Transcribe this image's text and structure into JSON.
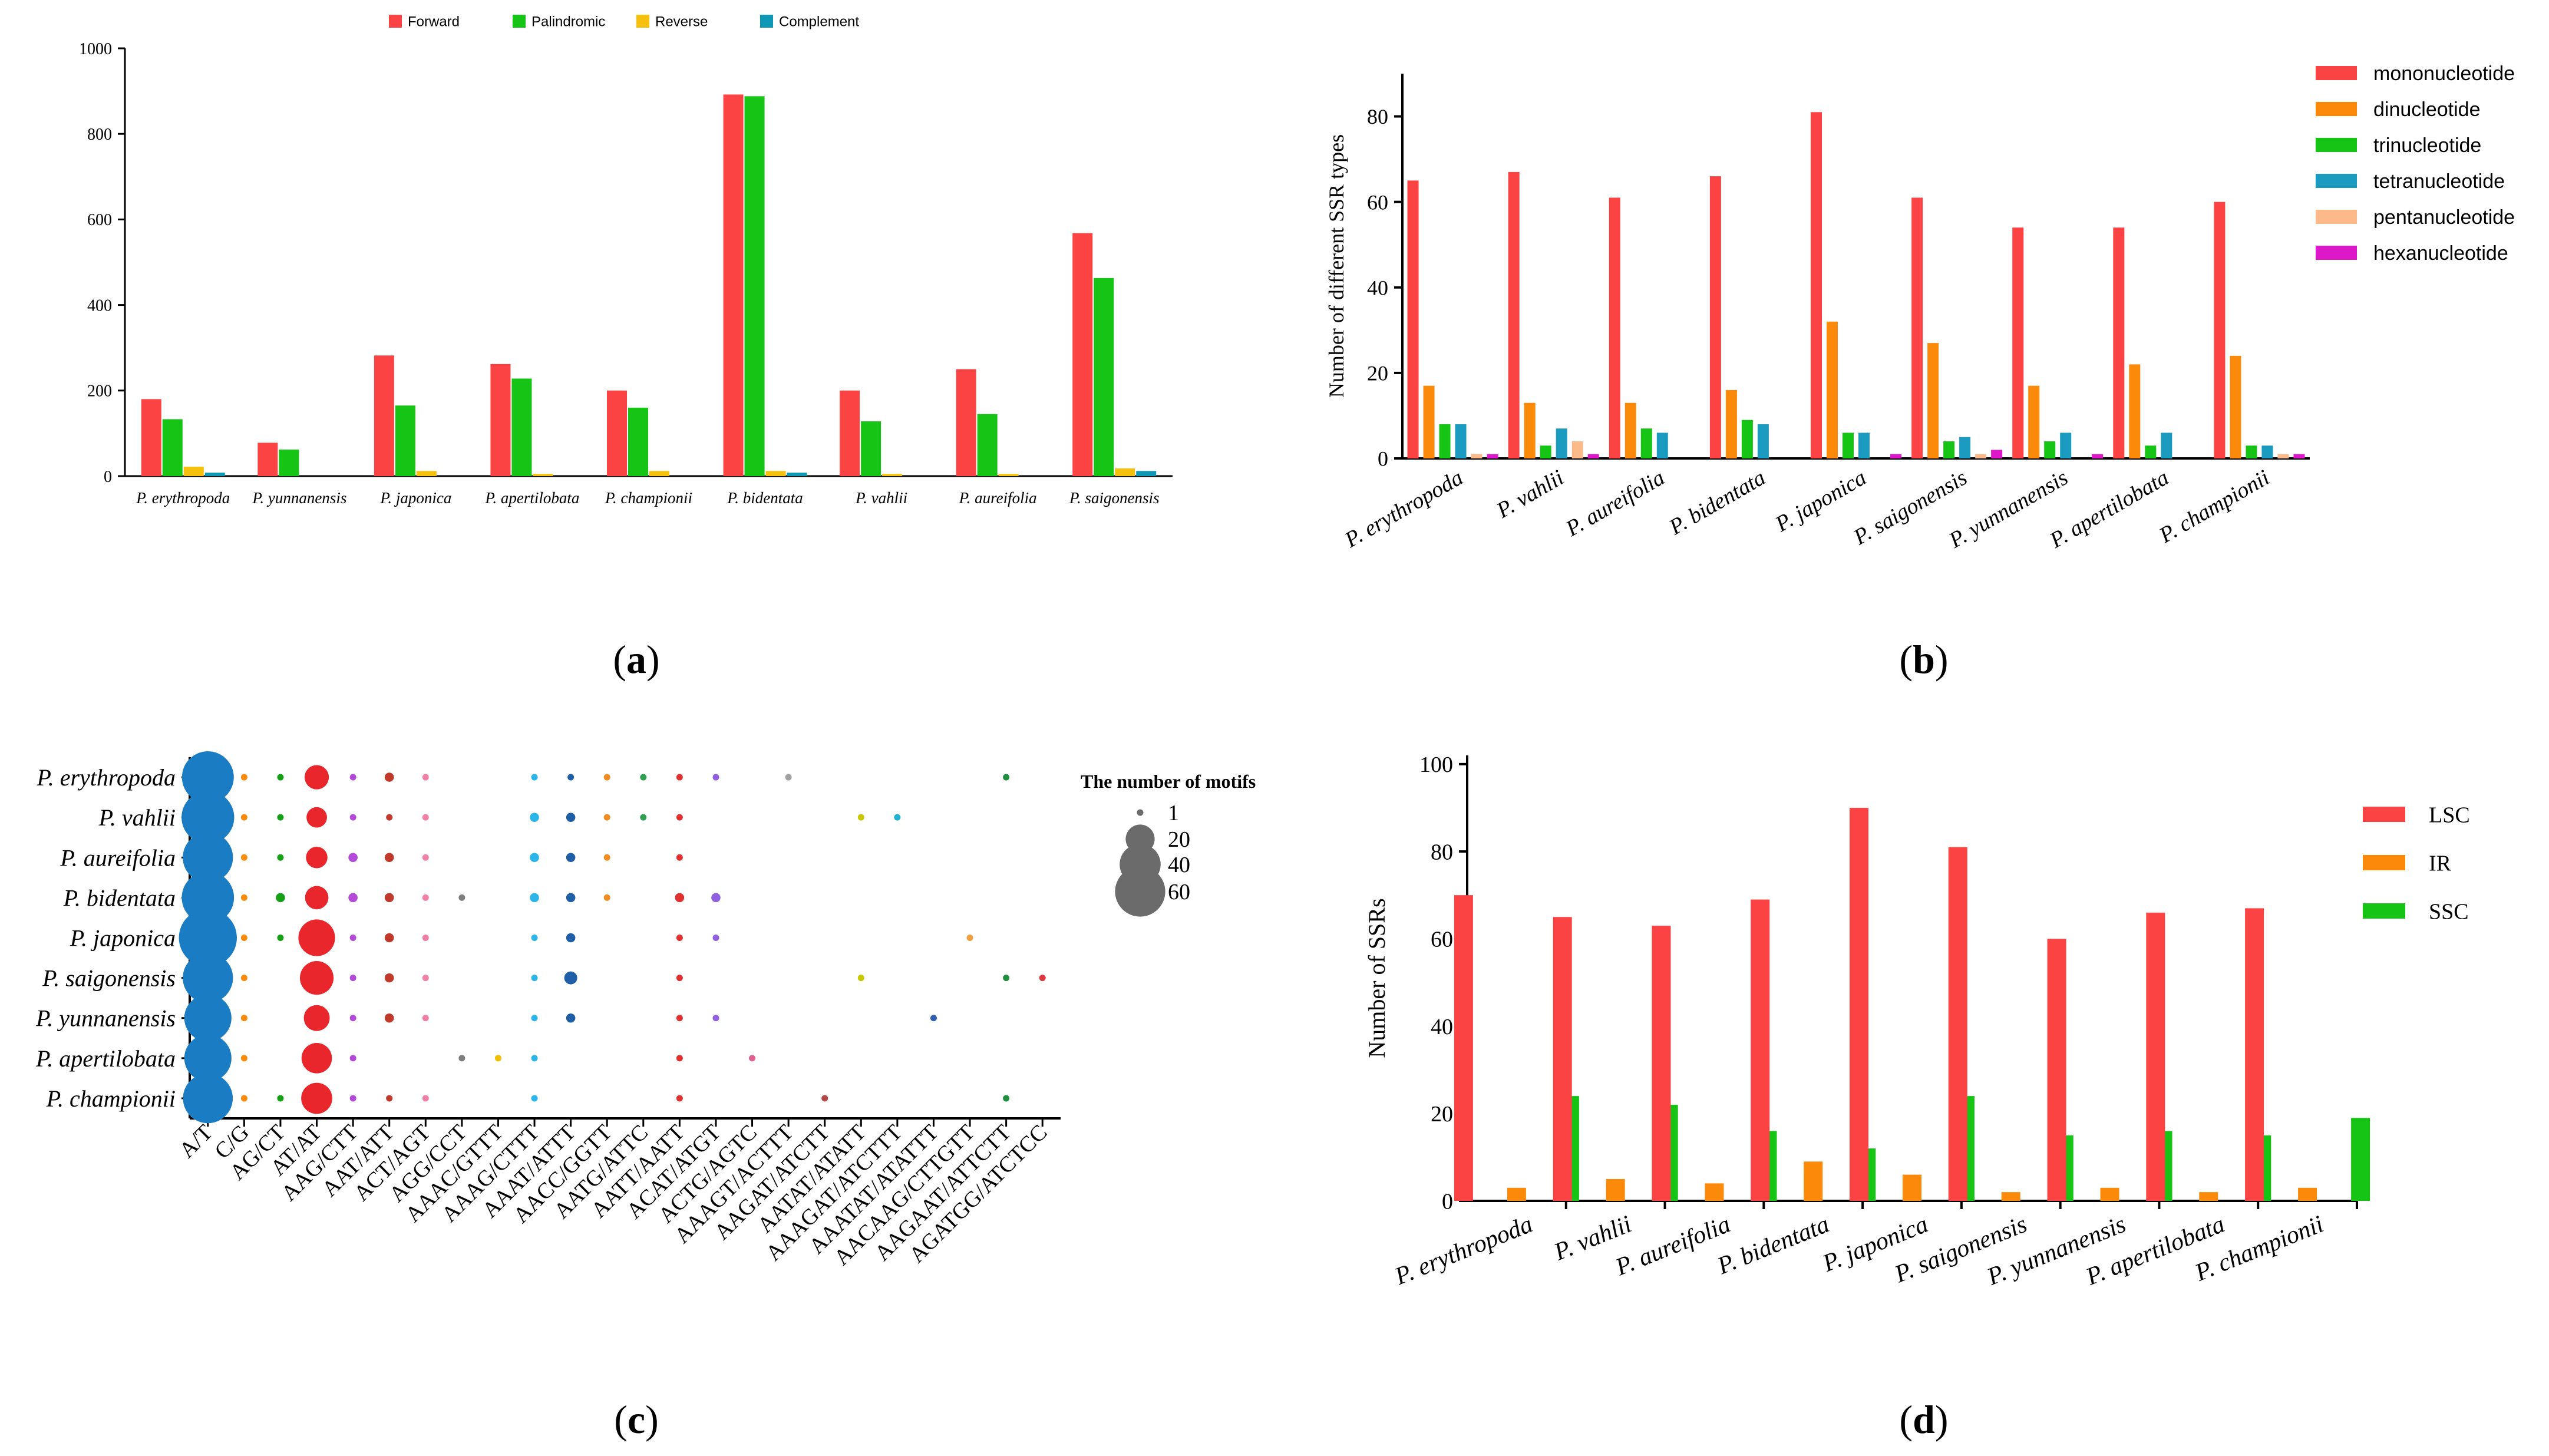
{
  "panel_labels": {
    "a": "a",
    "b": "b",
    "c": "c",
    "d": "d"
  },
  "colors": {
    "red": "#fc4343",
    "green": "#16c416",
    "yellow": "#f5c10d",
    "teal": "#0e98b5",
    "orange": "#fb8a0b",
    "tealb": "#1a9bbf",
    "peach": "#fcb98a",
    "magenta": "#dd18c9",
    "bubble_blue": "#1a7cc2",
    "bubble_gray": "#6b6b6b"
  },
  "chart_data": [
    {
      "id": "a",
      "type": "bar",
      "title": "",
      "xlabel": "",
      "ylabel": "",
      "ylim": [
        0,
        1000
      ],
      "yticks": [
        0,
        200,
        400,
        600,
        800,
        1000
      ],
      "legend_position": "top",
      "categories": [
        "P. erythropoda",
        "P. yunnanensis",
        "P. japonica",
        "P. apertilobata",
        "P. championii",
        "P. bidentata",
        "P. vahlii",
        "P. aureifolia",
        "P. saigonensis"
      ],
      "series": [
        {
          "name": "Forward",
          "color": "#fc4343",
          "values": [
            180,
            78,
            282,
            262,
            200,
            892,
            200,
            250,
            568
          ]
        },
        {
          "name": "Palindromic",
          "color": "#16c416",
          "values": [
            133,
            62,
            165,
            228,
            160,
            888,
            128,
            145,
            463
          ]
        },
        {
          "name": "Reverse",
          "color": "#f5c10d",
          "values": [
            22,
            0,
            12,
            5,
            12,
            12,
            5,
            5,
            18
          ]
        },
        {
          "name": "Complement",
          "color": "#0e98b5",
          "values": [
            8,
            0,
            0,
            0,
            0,
            8,
            0,
            0,
            12
          ]
        }
      ]
    },
    {
      "id": "b",
      "type": "bar",
      "title": "",
      "xlabel": "",
      "ylabel": "Number of different SSR types",
      "ylim": [
        0,
        90
      ],
      "yticks": [
        0,
        20,
        40,
        60,
        80
      ],
      "legend_position": "right",
      "categories": [
        "P. erythropoda",
        "P. vahlii",
        "P. aureifolia",
        "P. bidentata",
        "P. japonica",
        "P. saigonensis",
        "P. yunnanensis",
        "P. apertilobata",
        "P. championii"
      ],
      "series": [
        {
          "name": "mononucleotide",
          "color": "#fc4343",
          "values": [
            65,
            67,
            61,
            66,
            81,
            61,
            54,
            54,
            60
          ]
        },
        {
          "name": "dinucleotide",
          "color": "#fb8a0b",
          "values": [
            17,
            13,
            13,
            16,
            32,
            27,
            17,
            22,
            24
          ]
        },
        {
          "name": "trinucleotide",
          "color": "#16c416",
          "values": [
            8,
            3,
            7,
            9,
            6,
            4,
            4,
            3,
            3
          ]
        },
        {
          "name": "tetranucleotide",
          "color": "#1a9bbf",
          "values": [
            8,
            7,
            6,
            8,
            6,
            5,
            6,
            6,
            3
          ]
        },
        {
          "name": "pentanucleotide",
          "color": "#fcb98a",
          "values": [
            1,
            4,
            0,
            0,
            0,
            1,
            0,
            0,
            1
          ]
        },
        {
          "name": "hexanucleotide",
          "color": "#dd18c9",
          "values": [
            1,
            1,
            0,
            0,
            1,
            2,
            1,
            0,
            1
          ]
        }
      ]
    },
    {
      "id": "c",
      "type": "scatter",
      "title": "",
      "xlabel": "",
      "ylabel": "",
      "legend_title": "The number of motifs",
      "size_legend": [
        1,
        20,
        40,
        60
      ],
      "species": [
        "P. erythropoda",
        "P. vahlii",
        "P. aureifolia",
        "P. bidentata",
        "P. japonica",
        "P. saigonensis",
        "P. yunnanensis",
        "P. apertilobata",
        "P. championii"
      ],
      "motifs": [
        "A/T",
        "C/G",
        "AG/CT",
        "AT/AT",
        "AAG/CTT",
        "AAT/ATT",
        "ACT/AGT",
        "AGG/CCT",
        "AAAC/GTTT",
        "AAAG/CTTT",
        "AAAT/ATTT",
        "AACC/GGTT",
        "AATG/ATTC",
        "AATT/AATT",
        "ACAT/ATGT",
        "ACTG/AGTC",
        "AAAGT/ACTTT",
        "AAGAT/ATCTT",
        "AATAT/ATATT",
        "AAAGAT/ATCTTT",
        "AAATAT/ATATTT",
        "AACAAG/CTTGTT",
        "AAGAAT/ATTCTT",
        "AGATGG/ATCTCC"
      ],
      "motif_colors": [
        "#1a7cc2",
        "#fb8a0b",
        "#16a016",
        "#e8262b",
        "#b44ad8",
        "#c0392b",
        "#f080a8",
        "#7e7e7e",
        "#f0c000",
        "#2cb5e8",
        "#1e5fa8",
        "#f08c20",
        "#2ea050",
        "#e03030",
        "#9060e0",
        "#e06090",
        "#a0a0a0",
        "#b04848",
        "#c8c800",
        "#20b0d0",
        "#3060b0",
        "#f0a040",
        "#209040",
        "#e03840"
      ],
      "points": [
        {
          "species": "P. erythropoda",
          "motif": "A/T",
          "count": 64
        },
        {
          "species": "P. erythropoda",
          "motif": "C/G",
          "count": 1
        },
        {
          "species": "P. erythropoda",
          "motif": "AG/CT",
          "count": 1
        },
        {
          "species": "P. erythropoda",
          "motif": "AT/AT",
          "count": 14
        },
        {
          "species": "P. erythropoda",
          "motif": "AAG/CTT",
          "count": 1
        },
        {
          "species": "P. erythropoda",
          "motif": "AAT/ATT",
          "count": 2
        },
        {
          "species": "P. erythropoda",
          "motif": "ACT/AGT",
          "count": 1
        },
        {
          "species": "P. erythropoda",
          "motif": "AAAG/CTTT",
          "count": 1
        },
        {
          "species": "P. erythropoda",
          "motif": "AAAT/ATTT",
          "count": 1
        },
        {
          "species": "P. erythropoda",
          "motif": "AACC/GGTT",
          "count": 1
        },
        {
          "species": "P. erythropoda",
          "motif": "AATG/ATTC",
          "count": 1
        },
        {
          "species": "P. erythropoda",
          "motif": "AATT/AATT",
          "count": 1
        },
        {
          "species": "P. erythropoda",
          "motif": "ACAT/ATGT",
          "count": 1
        },
        {
          "species": "P. erythropoda",
          "motif": "AAAGT/ACTTT",
          "count": 1
        },
        {
          "species": "P. erythropoda",
          "motif": "AAGAAT/ATTCTT",
          "count": 1
        },
        {
          "species": "P. vahlii",
          "motif": "A/T",
          "count": 66
        },
        {
          "species": "P. vahlii",
          "motif": "C/G",
          "count": 1
        },
        {
          "species": "P. vahlii",
          "motif": "AG/CT",
          "count": 1
        },
        {
          "species": "P. vahlii",
          "motif": "AT/AT",
          "count": 10
        },
        {
          "species": "P. vahlii",
          "motif": "AAG/CTT",
          "count": 1
        },
        {
          "species": "P. vahlii",
          "motif": "AAT/ATT",
          "count": 1
        },
        {
          "species": "P. vahlii",
          "motif": "ACT/AGT",
          "count": 1
        },
        {
          "species": "P. vahlii",
          "motif": "AAAG/CTTT",
          "count": 2
        },
        {
          "species": "P. vahlii",
          "motif": "AAAT/ATTT",
          "count": 2
        },
        {
          "species": "P. vahlii",
          "motif": "AACC/GGTT",
          "count": 1
        },
        {
          "species": "P. vahlii",
          "motif": "AATG/ATTC",
          "count": 1
        },
        {
          "species": "P. vahlii",
          "motif": "AATT/AATT",
          "count": 1
        },
        {
          "species": "P. vahlii",
          "motif": "AATAT/ATATT",
          "count": 1
        },
        {
          "species": "P. vahlii",
          "motif": "AAAGAT/ATCTTT",
          "count": 1
        },
        {
          "species": "P. aureifolia",
          "motif": "A/T",
          "count": 60
        },
        {
          "species": "P. aureifolia",
          "motif": "C/G",
          "count": 1
        },
        {
          "species": "P. aureifolia",
          "motif": "AG/CT",
          "count": 1
        },
        {
          "species": "P. aureifolia",
          "motif": "AT/AT",
          "count": 11
        },
        {
          "species": "P. aureifolia",
          "motif": "AAG/CTT",
          "count": 2
        },
        {
          "species": "P. aureifolia",
          "motif": "AAT/ATT",
          "count": 2
        },
        {
          "species": "P. aureifolia",
          "motif": "ACT/AGT",
          "count": 1
        },
        {
          "species": "P. aureifolia",
          "motif": "AAAG/CTTT",
          "count": 2
        },
        {
          "species": "P. aureifolia",
          "motif": "AAAT/ATTT",
          "count": 2
        },
        {
          "species": "P. aureifolia",
          "motif": "AACC/GGTT",
          "count": 1
        },
        {
          "species": "P. aureifolia",
          "motif": "AATT/AATT",
          "count": 1
        },
        {
          "species": "P. bidentata",
          "motif": "A/T",
          "count": 65
        },
        {
          "species": "P. bidentata",
          "motif": "C/G",
          "count": 1
        },
        {
          "species": "P. bidentata",
          "motif": "AG/CT",
          "count": 2
        },
        {
          "species": "P. bidentata",
          "motif": "AT/AT",
          "count": 13
        },
        {
          "species": "P. bidentata",
          "motif": "AAG/CTT",
          "count": 2
        },
        {
          "species": "P. bidentata",
          "motif": "AAT/ATT",
          "count": 2
        },
        {
          "species": "P. bidentata",
          "motif": "ACT/AGT",
          "count": 1
        },
        {
          "species": "P. bidentata",
          "motif": "AGG/CCT",
          "count": 1
        },
        {
          "species": "P. bidentata",
          "motif": "AAAG/CTTT",
          "count": 2
        },
        {
          "species": "P. bidentata",
          "motif": "AAAT/ATTT",
          "count": 2
        },
        {
          "species": "P. bidentata",
          "motif": "AACC/GGTT",
          "count": 1
        },
        {
          "species": "P. bidentata",
          "motif": "AATT/AATT",
          "count": 2
        },
        {
          "species": "P. bidentata",
          "motif": "ACAT/ATGT",
          "count": 2
        },
        {
          "species": "P. japonica",
          "motif": "A/T",
          "count": 80
        },
        {
          "species": "P. japonica",
          "motif": "C/G",
          "count": 1
        },
        {
          "species": "P. japonica",
          "motif": "AG/CT",
          "count": 1
        },
        {
          "species": "P. japonica",
          "motif": "AT/AT",
          "count": 32
        },
        {
          "species": "P. japonica",
          "motif": "AAG/CTT",
          "count": 1
        },
        {
          "species": "P. japonica",
          "motif": "AAT/ATT",
          "count": 2
        },
        {
          "species": "P. japonica",
          "motif": "ACT/AGT",
          "count": 1
        },
        {
          "species": "P. japonica",
          "motif": "AAAG/CTTT",
          "count": 1
        },
        {
          "species": "P. japonica",
          "motif": "AAAT/ATTT",
          "count": 2
        },
        {
          "species": "P. japonica",
          "motif": "AATT/AATT",
          "count": 1
        },
        {
          "species": "P. japonica",
          "motif": "ACAT/ATGT",
          "count": 1
        },
        {
          "species": "P. japonica",
          "motif": "AACAAG/CTTGTT",
          "count": 1
        },
        {
          "species": "P. saigonensis",
          "motif": "A/T",
          "count": 60
        },
        {
          "species": "P. saigonensis",
          "motif": "C/G",
          "count": 1
        },
        {
          "species": "P. saigonensis",
          "motif": "AT/AT",
          "count": 27
        },
        {
          "species": "P. saigonensis",
          "motif": "AAG/CTT",
          "count": 1
        },
        {
          "species": "P. saigonensis",
          "motif": "AAT/ATT",
          "count": 2
        },
        {
          "species": "P. saigonensis",
          "motif": "ACT/AGT",
          "count": 1
        },
        {
          "species": "P. saigonensis",
          "motif": "AAAG/CTTT",
          "count": 1
        },
        {
          "species": "P. saigonensis",
          "motif": "AAAT/ATTT",
          "count": 4
        },
        {
          "species": "P. saigonensis",
          "motif": "AATT/AATT",
          "count": 1
        },
        {
          "species": "P. saigonensis",
          "motif": "AATAT/ATATT",
          "count": 1
        },
        {
          "species": "P. saigonensis",
          "motif": "AAGAAT/ATTCTT",
          "count": 1
        },
        {
          "species": "P. saigonensis",
          "motif": "AGATGG/ATCTCC",
          "count": 1
        },
        {
          "species": "P. yunnanensis",
          "motif": "A/T",
          "count": 53
        },
        {
          "species": "P. yunnanensis",
          "motif": "C/G",
          "count": 1
        },
        {
          "species": "P. yunnanensis",
          "motif": "AT/AT",
          "count": 16
        },
        {
          "species": "P. yunnanensis",
          "motif": "AAG/CTT",
          "count": 1
        },
        {
          "species": "P. yunnanensis",
          "motif": "AAT/ATT",
          "count": 2
        },
        {
          "species": "P. yunnanensis",
          "motif": "ACT/AGT",
          "count": 1
        },
        {
          "species": "P. yunnanensis",
          "motif": "AAAG/CTTT",
          "count": 1
        },
        {
          "species": "P. yunnanensis",
          "motif": "AAAT/ATTT",
          "count": 2
        },
        {
          "species": "P. yunnanensis",
          "motif": "AATT/AATT",
          "count": 1
        },
        {
          "species": "P. yunnanensis",
          "motif": "ACAT/ATGT",
          "count": 1
        },
        {
          "species": "P. yunnanensis",
          "motif": "AAATAT/ATATTT",
          "count": 1
        },
        {
          "species": "P. apertilobata",
          "motif": "A/T",
          "count": 53
        },
        {
          "species": "P. apertilobata",
          "motif": "C/G",
          "count": 1
        },
        {
          "species": "P. apertilobata",
          "motif": "AT/AT",
          "count": 22
        },
        {
          "species": "P. apertilobata",
          "motif": "AAG/CTT",
          "count": 1
        },
        {
          "species": "P. apertilobata",
          "motif": "AGG/CCT",
          "count": 1
        },
        {
          "species": "P. apertilobata",
          "motif": "AAAC/GTTT",
          "count": 1
        },
        {
          "species": "P. apertilobata",
          "motif": "AAAG/CTTT",
          "count": 1
        },
        {
          "species": "P. apertilobata",
          "motif": "AATT/AATT",
          "count": 1
        },
        {
          "species": "P. apertilobata",
          "motif": "ACTG/AGTC",
          "count": 1
        },
        {
          "species": "P. championii",
          "motif": "A/T",
          "count": 59
        },
        {
          "species": "P. championii",
          "motif": "C/G",
          "count": 1
        },
        {
          "species": "P. championii",
          "motif": "AG/CT",
          "count": 1
        },
        {
          "species": "P. championii",
          "motif": "AT/AT",
          "count": 23
        },
        {
          "species": "P. championii",
          "motif": "AAG/CTT",
          "count": 1
        },
        {
          "species": "P. championii",
          "motif": "AAT/ATT",
          "count": 1
        },
        {
          "species": "P. championii",
          "motif": "ACT/AGT",
          "count": 1
        },
        {
          "species": "P. championii",
          "motif": "AAAG/CTTT",
          "count": 1
        },
        {
          "species": "P. championii",
          "motif": "AATT/AATT",
          "count": 1
        },
        {
          "species": "P. championii",
          "motif": "AAGAT/ATCTT",
          "count": 1
        },
        {
          "species": "P. championii",
          "motif": "AAGAAT/ATTCTT",
          "count": 1
        }
      ]
    },
    {
      "id": "d",
      "type": "bar",
      "title": "",
      "xlabel": "",
      "ylabel": "Number of SSRs",
      "ylim": [
        0,
        102
      ],
      "yticks": [
        0,
        20,
        40,
        60,
        80,
        100
      ],
      "legend_position": "right",
      "categories": [
        "P. erythropoda",
        "P. vahlii",
        "P. aureifolia",
        "P. bidentata",
        "P. japonica",
        "P. saigonensis",
        "P. yunnanensis",
        "P. apertilobata",
        "P. championii"
      ],
      "series": [
        {
          "name": "LSC",
          "color": "#fc4343",
          "values": [
            70,
            65,
            63,
            69,
            90,
            81,
            60,
            66,
            67
          ]
        },
        {
          "name": "IR",
          "color": "#fb8a0b",
          "values": [
            3,
            5,
            4,
            9,
            6,
            2,
            3,
            2,
            3
          ]
        },
        {
          "name": "SSC",
          "color": "#16c416",
          "values": [
            24,
            22,
            16,
            12,
            24,
            15,
            16,
            15,
            19
          ]
        }
      ]
    }
  ]
}
